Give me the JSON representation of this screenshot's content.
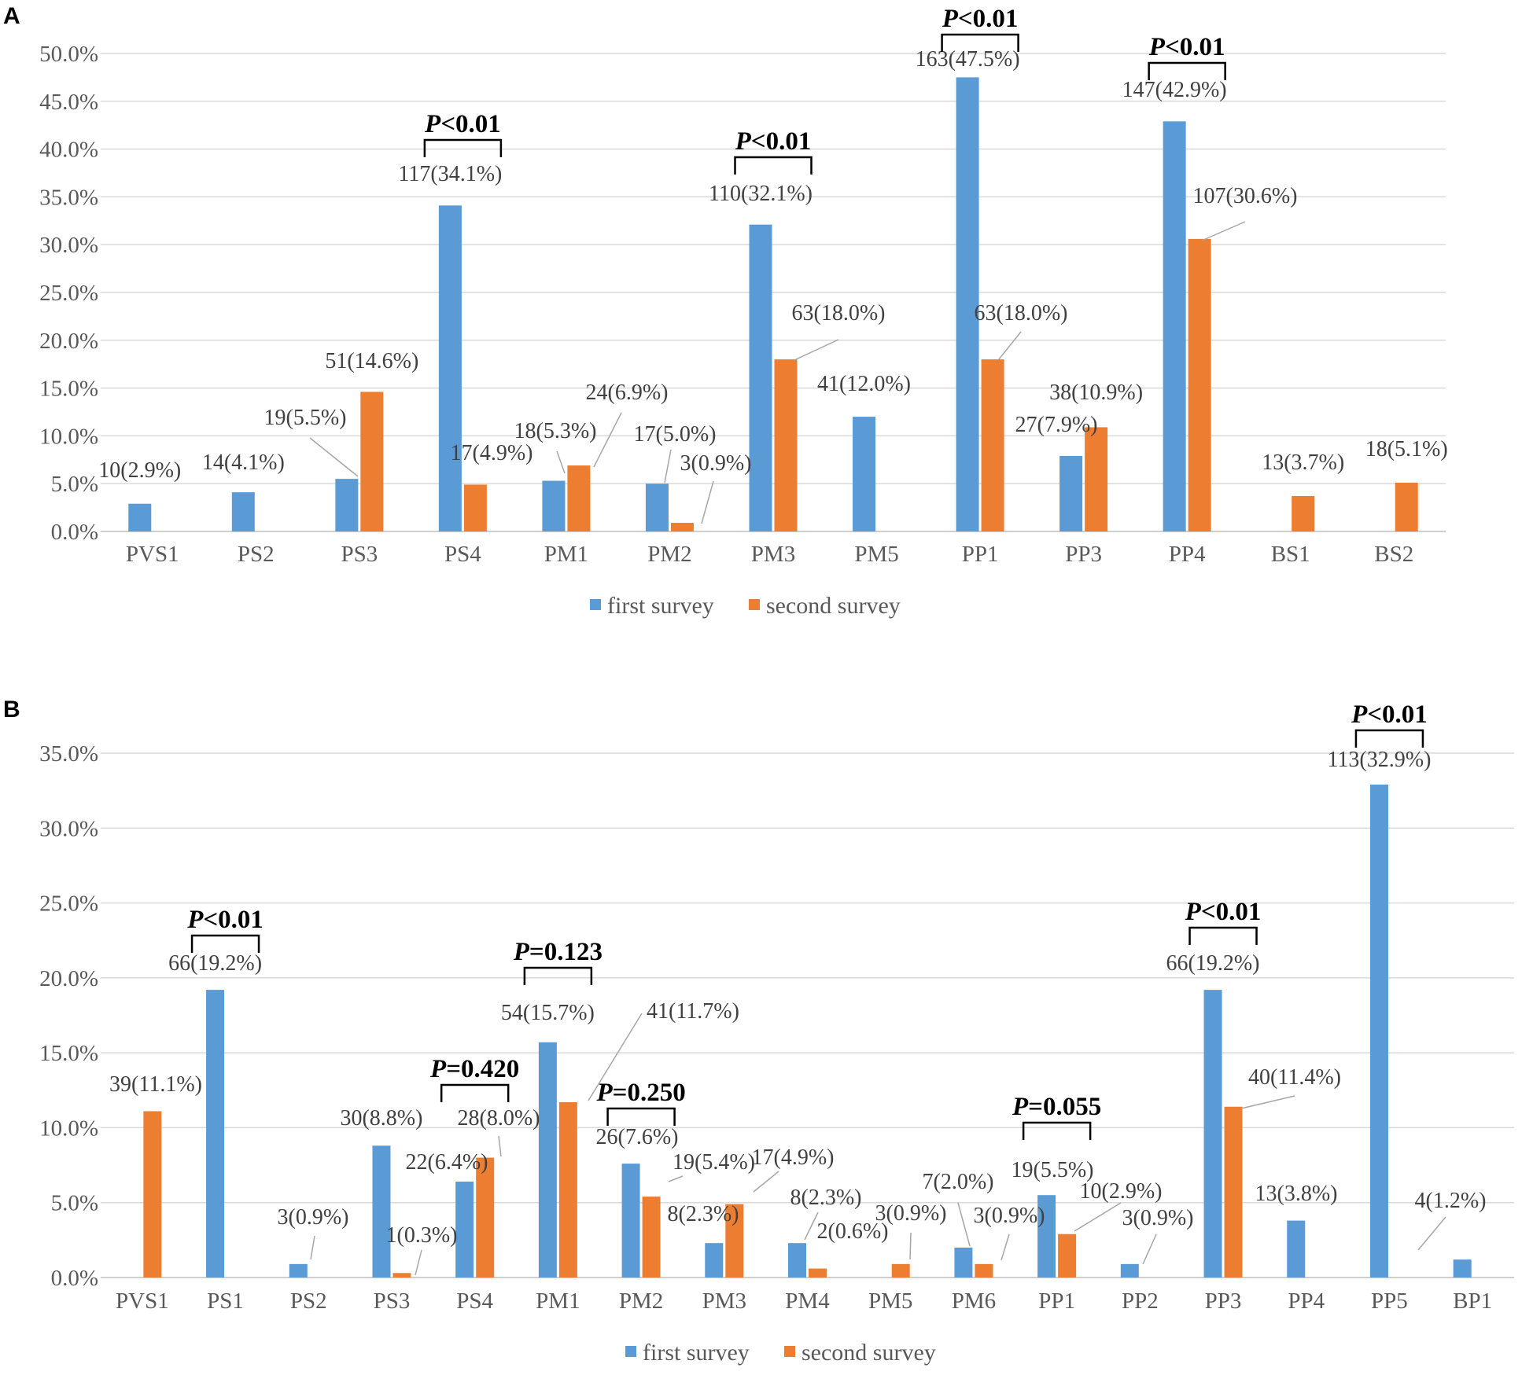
{
  "colors": {
    "first": "#5b9bd5",
    "second": "#ed7d31"
  },
  "chart_data": [
    {
      "panel": "A",
      "type": "bar",
      "ylim": [
        0,
        50
      ],
      "yticks": [
        "0.0%",
        "5.0%",
        "10.0%",
        "15.0%",
        "20.0%",
        "25.0%",
        "30.0%",
        "35.0%",
        "40.0%",
        "45.0%",
        "50.0%"
      ],
      "categories": [
        "PVS1",
        "PS2",
        "PS3",
        "PS4",
        "PM1",
        "PM2",
        "PM3",
        "PM5",
        "PP1",
        "PP3",
        "PP4",
        "BS1",
        "BS2"
      ],
      "series": [
        {
          "name": "first survey",
          "values": [
            2.9,
            4.1,
            5.5,
            34.1,
            5.3,
            5.0,
            32.1,
            12.0,
            47.5,
            7.9,
            42.9,
            null,
            null
          ],
          "labels": [
            "10(2.9%)",
            "14(4.1%)",
            "19(5.5%)",
            "117(34.1%)",
            "18(5.3%)",
            "17(5.0%)",
            "110(32.1%)",
            "41(12.0%)",
            "163(47.5%)",
            "27(7.9%)",
            "147(42.9%)",
            null,
            null
          ]
        },
        {
          "name": "second survey",
          "values": [
            null,
            null,
            14.6,
            4.9,
            6.9,
            0.9,
            18.0,
            null,
            18.0,
            10.9,
            30.6,
            3.7,
            5.1
          ],
          "labels": [
            null,
            null,
            "51(14.6%)",
            "17(4.9%)",
            "24(6.9%)",
            "3(0.9%)",
            "63(18.0%)",
            null,
            "63(18.0%)",
            "38(10.9%)",
            "107(30.6%)",
            "13(3.7%)",
            "18(5.1%)"
          ]
        }
      ],
      "pvalues": [
        {
          "category": "PS4",
          "text": "<0.01"
        },
        {
          "category": "PM3",
          "text": "<0.01"
        },
        {
          "category": "PP1",
          "text": "<0.01"
        },
        {
          "category": "PP4",
          "text": "<0.01"
        }
      ]
    },
    {
      "panel": "B",
      "type": "bar",
      "ylim": [
        0,
        35
      ],
      "yticks": [
        "0.0%",
        "5.0%",
        "10.0%",
        "15.0%",
        "20.0%",
        "25.0%",
        "30.0%",
        "35.0%"
      ],
      "categories": [
        "PVS1",
        "PS1",
        "PS2",
        "PS3",
        "PS4",
        "PM1",
        "PM2",
        "PM3",
        "PM4",
        "PM5",
        "PM6",
        "PP1",
        "PP2",
        "PP3",
        "PP4",
        "PP5",
        "BP1"
      ],
      "series": [
        {
          "name": "first survey",
          "values": [
            null,
            19.2,
            0.9,
            8.8,
            6.4,
            15.7,
            7.6,
            2.3,
            2.3,
            null,
            2.0,
            5.5,
            0.9,
            19.2,
            3.8,
            32.9,
            1.2
          ],
          "labels": [
            null,
            "66(19.2%)",
            "3(0.9%)",
            "30(8.8%)",
            "22(6.4%)",
            "54(15.7%)",
            "26(7.6%)",
            "8(2.3%)",
            "8(2.3%)",
            null,
            "7(2.0%)",
            "19(5.5%)",
            "3(0.9%)",
            "66(19.2%)",
            "13(3.8%)",
            "113(32.9%)",
            "4(1.2%)"
          ]
        },
        {
          "name": "second survey",
          "values": [
            11.1,
            null,
            null,
            0.3,
            8.0,
            11.7,
            5.4,
            4.9,
            0.6,
            0.9,
            0.9,
            2.9,
            null,
            11.4,
            null,
            null,
            null
          ],
          "labels": [
            "39(11.1%)",
            null,
            null,
            "1(0.3%)",
            "28(8.0%)",
            "41(11.7%)",
            "19(5.4%)",
            "17(4.9%)",
            "2(0.6%)",
            "3(0.9%)",
            "3(0.9%)",
            "10(2.9%)",
            null,
            "40(11.4%)",
            null,
            null,
            null
          ]
        }
      ],
      "pvalues": [
        {
          "category": "PS1",
          "text": "<0.01"
        },
        {
          "category": "PS4",
          "text": "=0.420"
        },
        {
          "category": "PM1",
          "text": "=0.123"
        },
        {
          "category": "PM2",
          "text": "=0.250"
        },
        {
          "category": "PP1",
          "text": "=0.055"
        },
        {
          "category": "PP3",
          "text": "<0.01"
        },
        {
          "category": "PP5",
          "text": "<0.01"
        }
      ]
    }
  ]
}
